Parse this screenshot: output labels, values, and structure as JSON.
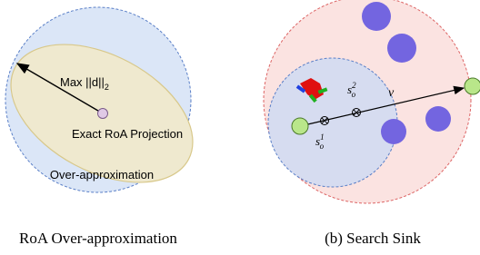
{
  "left_panel": {
    "arrow_label": {
      "main": "Max ||d||",
      "sub": "2"
    },
    "ellipse_label": "Exact RoA Projection",
    "circle_label": "Over-approximation",
    "caption": "RoA Over-approximation"
  },
  "right_panel": {
    "point_label_2": {
      "base": "s",
      "sub": "o",
      "sup": "2"
    },
    "point_label_1": {
      "base": "s",
      "sub": "o",
      "sup": "1"
    },
    "vector_label": "v",
    "caption": "(b) Search Sink"
  }
}
